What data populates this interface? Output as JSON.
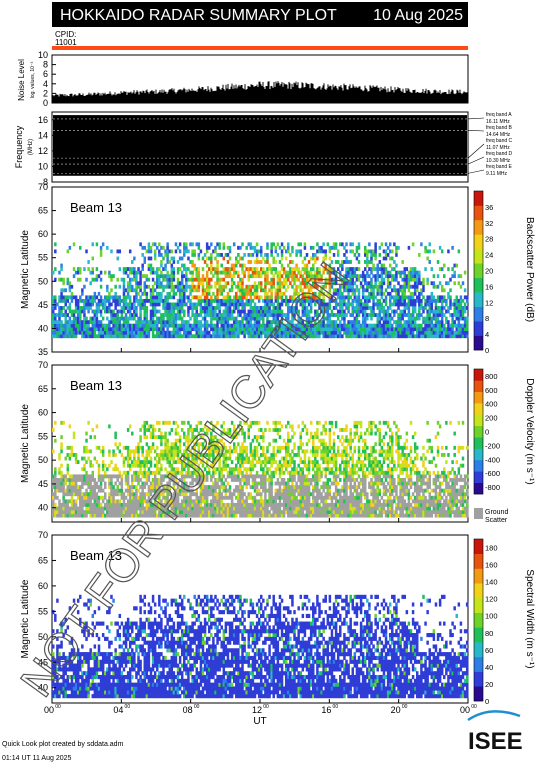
{
  "header": {
    "title": "HOKKAIDO RADAR SUMMARY PLOT",
    "date": "10 Aug 2025",
    "cpid_label": "CPID:",
    "cpid_value": "11001"
  },
  "noise": {
    "ylabel": "Noise Level",
    "ylabel_sub": "log. values, 10⁻³",
    "yticks": [
      "0",
      "2",
      "4",
      "6",
      "8",
      "10"
    ],
    "ylim": [
      0,
      10
    ]
  },
  "frequency": {
    "ylabel": "Frequency",
    "ylabel_sub": "(MHz)",
    "yticks": [
      "8",
      "10",
      "12",
      "14",
      "16"
    ],
    "ylim": [
      8,
      17
    ],
    "bands": [
      {
        "label": "freq band A",
        "value": "16.11 MHz",
        "mhz": 16.11
      },
      {
        "label": "freq band B",
        "value": "14.64 MHz",
        "mhz": 14.64
      },
      {
        "label": "freq band C",
        "value": "11.07 MHz",
        "mhz": 11.07
      },
      {
        "label": "freq band D",
        "value": "10.30 MHz",
        "mhz": 10.3
      },
      {
        "label": "freq band E",
        "value": "9.11 MHz",
        "mhz": 9.11
      }
    ]
  },
  "panels": [
    {
      "beam_label": "Beam 13",
      "ylabel": "Magnetic Latitude",
      "yticks": [
        "35",
        "40",
        "45",
        "50",
        "55",
        "60",
        "65",
        "70"
      ],
      "ylim": [
        35,
        70
      ],
      "colorbar_label": "Backscatter Power (dB)",
      "colorbar_ticks": [
        "0",
        "4",
        "8",
        "12",
        "16",
        "20",
        "24",
        "28",
        "32",
        "36"
      ],
      "colorbar_range": [
        0,
        40
      ],
      "colors": [
        "#2a0b8f",
        "#2f3cd6",
        "#2d7fe6",
        "#29b8c9",
        "#1fbf5a",
        "#6fd22a",
        "#c4e41d",
        "#f0d21b",
        "#f29a14",
        "#e8520f",
        "#c8160b"
      ],
      "kind": "power"
    },
    {
      "beam_label": "Beam 13",
      "ylabel": "Magnetic Latitude",
      "yticks": [
        "40",
        "45",
        "50",
        "55",
        "60",
        "65",
        "70"
      ],
      "ylim": [
        37,
        70
      ],
      "colorbar_label": "Doppler Velocity (m s⁻¹)",
      "colorbar_ticks": [
        "-800",
        "-600",
        "-400",
        "-200",
        "0",
        "200",
        "400",
        "600",
        "800"
      ],
      "colorbar_range": [
        -900,
        900
      ],
      "colors": [
        "#2a0b8f",
        "#2f3cd6",
        "#2d7fe6",
        "#29b8c9",
        "#1fbf5a",
        "#6fd22a",
        "#c4e41d",
        "#f0d21b",
        "#f29a14",
        "#e8520f",
        "#c8160b"
      ],
      "ground_scatter_label": "Ground Scatter",
      "ground_scatter_color": "#a0a0a0",
      "kind": "velocity"
    },
    {
      "beam_label": "Beam 13",
      "ylabel": "Magnetic Latitude",
      "yticks": [
        "40",
        "45",
        "50",
        "55",
        "60",
        "65",
        "70"
      ],
      "ylim": [
        37,
        70
      ],
      "colorbar_label": "Spectral Width (m s⁻¹)",
      "colorbar_ticks": [
        "0",
        "20",
        "40",
        "60",
        "80",
        "100",
        "120",
        "140",
        "160",
        "180"
      ],
      "colorbar_range": [
        0,
        190
      ],
      "colors": [
        "#2a0b8f",
        "#2f3cd6",
        "#2d7fe6",
        "#29b8c9",
        "#1fbf5a",
        "#6fd22a",
        "#c4e41d",
        "#f0d21b",
        "#f29a14",
        "#e8520f",
        "#c8160b"
      ],
      "kind": "width"
    }
  ],
  "time_axis": {
    "xlabel": "UT",
    "ticks": [
      {
        "h": "00",
        "m": "00"
      },
      {
        "h": "04",
        "m": "00"
      },
      {
        "h": "08",
        "m": "00"
      },
      {
        "h": "12",
        "m": "00"
      },
      {
        "h": "16",
        "m": "00"
      },
      {
        "h": "20",
        "m": "00"
      },
      {
        "h": "00",
        "m": "00"
      }
    ],
    "range_hours": [
      0,
      24
    ]
  },
  "watermark": "NOT FOR PUBLICATION",
  "footer": {
    "credit": "Quick Look plot created by sddata.adm",
    "timestamp": "01:14 UT 11 Aug 2025",
    "logo_text": "ISEE"
  },
  "chart_data": [
    {
      "type": "bar",
      "title": "HOKKAIDO RADAR SUMMARY PLOT",
      "ylabel": "Noise Level",
      "ylim": [
        0,
        10
      ],
      "x_hours": [
        0,
        2,
        4,
        6,
        8,
        10,
        12,
        14,
        16,
        18,
        20,
        22,
        24
      ],
      "values": [
        1.6,
        1.8,
        2.2,
        2.4,
        2.8,
        3.3,
        3.8,
        3.8,
        3.5,
        3.2,
        2.8,
        2.5,
        2.3
      ]
    },
    {
      "type": "line",
      "ylabel": "Frequency",
      "ylim": [
        8,
        17
      ],
      "series": [
        {
          "name": "freq band A",
          "values": [
            16.11
          ]
        },
        {
          "name": "freq band B",
          "values": [
            14.64
          ]
        },
        {
          "name": "freq band C",
          "values": [
            11.07
          ]
        },
        {
          "name": "freq band D",
          "values": [
            10.3
          ]
        },
        {
          "name": "freq band E",
          "values": [
            9.11
          ]
        }
      ]
    },
    {
      "type": "heatmap",
      "title": "Beam 13",
      "xlabel": "UT",
      "ylabel": "Magnetic Latitude",
      "ylim": [
        35,
        70
      ],
      "colorbar": "Backscatter Power (dB)",
      "value_range": [
        0,
        40
      ],
      "lat_range_with_echoes": [
        38,
        58
      ],
      "peak_region": {
        "ut_hours": [
          8,
          16
        ],
        "mlat": [
          46,
          55
        ],
        "value_db": 24
      }
    },
    {
      "type": "heatmap",
      "title": "Beam 13",
      "xlabel": "UT",
      "ylabel": "Magnetic Latitude",
      "ylim": [
        37,
        70
      ],
      "colorbar": "Doppler Velocity (m s⁻¹)",
      "value_range": [
        -900,
        900
      ],
      "ground_scatter_mlat": [
        39,
        47
      ]
    },
    {
      "type": "heatmap",
      "title": "Beam 13",
      "xlabel": "UT",
      "ylabel": "Magnetic Latitude",
      "ylim": [
        37,
        70
      ],
      "colorbar": "Spectral Width (m s⁻¹)",
      "value_range": [
        0,
        190
      ],
      "typical_value": 10
    }
  ]
}
